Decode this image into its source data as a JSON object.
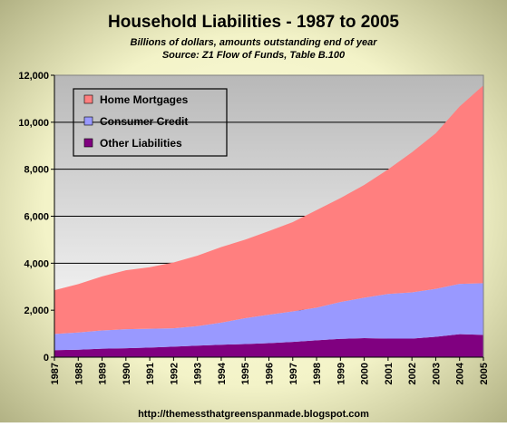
{
  "colors": {
    "home_mortgages": "#FF7F7F",
    "consumer_credit": "#9999FF",
    "other_liabilities": "#800080",
    "plot_bg_top": "#B8B8B8",
    "plot_bg_bottom": "#FFFFFF",
    "outer_bg_center": "#FFFFE0",
    "outer_bg_edge": "#A8A87A"
  },
  "chart_data": {
    "type": "area",
    "stacked": true,
    "title": "Household Liabilities - 1987 to 2005",
    "subtitle_lines": [
      "Billions of dollars, amounts outstanding end of year",
      "Source: Z1 Flow of Funds, Table B.100"
    ],
    "footer": "http://themessthatgreenspanmade.blogspot.com",
    "x": [
      "1987",
      "1988",
      "1989",
      "1990",
      "1991",
      "1992",
      "1993",
      "1994",
      "1995",
      "1996",
      "1997",
      "1998",
      "1999",
      "2000",
      "2001",
      "2002",
      "2003",
      "2004",
      "2005"
    ],
    "ylim": [
      0,
      12000
    ],
    "yticks": [
      0,
      2000,
      4000,
      6000,
      8000,
      10000,
      12000
    ],
    "ytick_labels": [
      "0",
      "2,000",
      "4,000",
      "6,000",
      "8,000",
      "10,000",
      "12,000"
    ],
    "grid": "horizontal",
    "legend_position": "top-left",
    "series": [
      {
        "name": "Other Liabilities",
        "color_key": "other_liabilities",
        "values": [
          300,
          320,
          360,
          380,
          410,
          450,
          490,
          530,
          560,
          600,
          650,
          720,
          780,
          810,
          790,
          790,
          870,
          980,
          950
        ]
      },
      {
        "name": "Consumer Credit",
        "color_key": "consumer_credit",
        "values": [
          690,
          730,
          780,
          810,
          800,
          780,
          830,
          940,
          1100,
          1210,
          1300,
          1390,
          1570,
          1720,
          1900,
          1970,
          2040,
          2140,
          2200
        ]
      },
      {
        "name": "Home Mortgages",
        "color_key": "home_mortgages",
        "values": [
          1860,
          2060,
          2300,
          2510,
          2620,
          2800,
          3000,
          3220,
          3340,
          3560,
          3800,
          4150,
          4420,
          4800,
          5300,
          5960,
          6620,
          7550,
          8420
        ]
      }
    ],
    "legend_order": [
      "Home Mortgages",
      "Consumer Credit",
      "Other Liabilities"
    ]
  }
}
